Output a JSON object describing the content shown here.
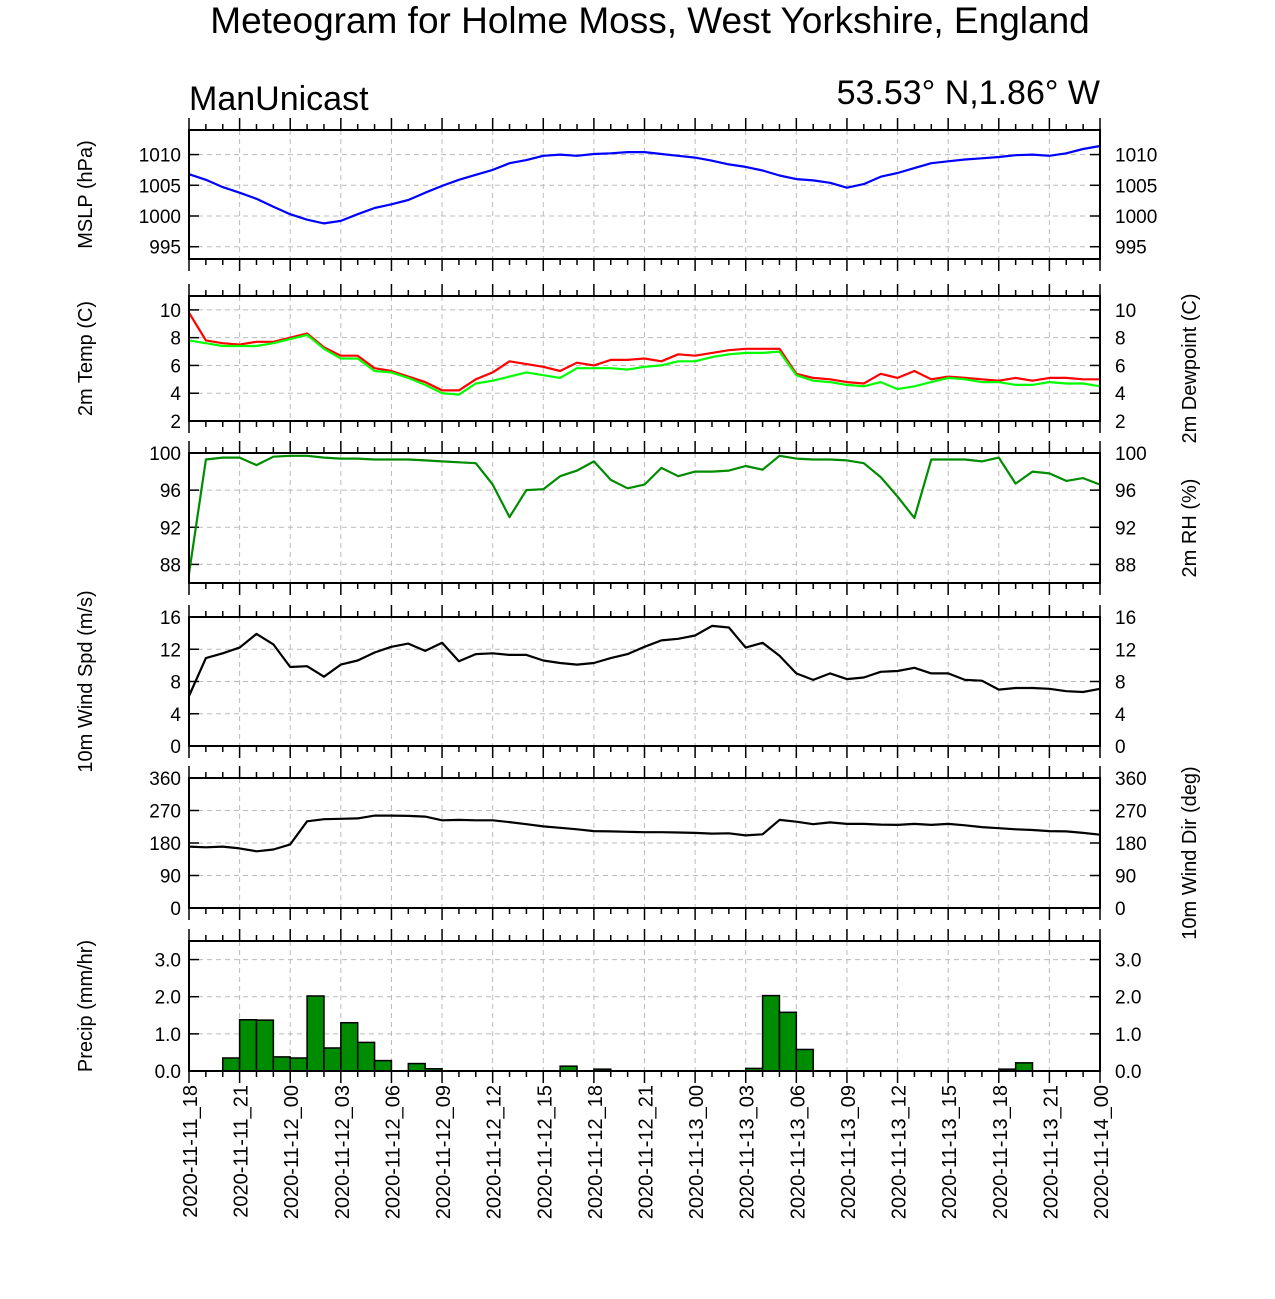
{
  "header": {
    "title": "Meteogram for Holme Moss, West Yorkshire, England",
    "model": "ManUnicast",
    "location": "53.53° N,1.86° W"
  },
  "time_labels": [
    "2020-11-11_18",
    "2020-11-11_21",
    "2020-11-12_00",
    "2020-11-12_03",
    "2020-11-12_06",
    "2020-11-12_09",
    "2020-11-12_12",
    "2020-11-12_15",
    "2020-11-12_18",
    "2020-11-12_21",
    "2020-11-13_00",
    "2020-11-13_03",
    "2020-11-13_06",
    "2020-11-13_09",
    "2020-11-13_12",
    "2020-11-13_15",
    "2020-11-13_18",
    "2020-11-13_21",
    "2020-11-14_00"
  ],
  "colors": {
    "mslp": "#0000ff",
    "temp": "#ff0000",
    "dewpoint": "#00ff00",
    "rh": "#008c00",
    "wind": "#000000",
    "precip_fill": "#008c00"
  },
  "chart_data": [
    {
      "type": "line",
      "id": "mslp",
      "ylabel_left": "MSLP (hPa)",
      "ylabel_right": "",
      "ylim": [
        993,
        1014
      ],
      "yticks": [
        995,
        1000,
        1005,
        1010
      ],
      "x_hours": [
        0,
        1,
        2,
        3,
        4,
        5,
        6,
        7,
        8,
        9,
        10,
        11,
        12,
        13,
        14,
        15,
        16,
        17,
        18,
        19,
        20,
        21,
        22,
        23,
        24,
        25,
        26,
        27,
        28,
        29,
        30,
        31,
        32,
        33,
        34,
        35,
        36,
        37,
        38,
        39,
        40,
        41,
        42,
        43,
        44,
        45,
        46,
        47,
        48,
        49,
        50,
        51,
        52,
        53,
        54
      ],
      "series": [
        {
          "values": [
            1006.8,
            1005.9,
            1004.7,
            1003.8,
            1002.8,
            1001.5,
            1000.3,
            999.4,
            998.8,
            999.2,
            1000.3,
            1001.3,
            1001.9,
            1002.6,
            1003.8,
            1004.9,
            1005.9,
            1006.7,
            1007.5,
            1008.6,
            1009.1,
            1009.8,
            1010.0,
            1009.8,
            1010.1,
            1010.2,
            1010.4,
            1010.4,
            1010.1,
            1009.8,
            1009.5,
            1009.0,
            1008.4,
            1008.0,
            1007.4,
            1006.6,
            1006.0,
            1005.8,
            1005.4,
            1004.6,
            1005.2,
            1006.4,
            1007.0,
            1007.8,
            1008.6,
            1008.9,
            1009.2,
            1009.4,
            1009.6,
            1009.9,
            1010.0,
            1009.8,
            1010.2,
            1010.9,
            1011.4
          ]
        }
      ],
      "x_extension_note": ""
    },
    {
      "type": "line",
      "id": "temp",
      "ylabel_left": "2m Temp (C)",
      "ylabel_right": "2m Dewpoint (C)",
      "ylim": [
        2,
        11
      ],
      "yticks": [
        2,
        4,
        6,
        8,
        10
      ],
      "series": [
        {
          "name": "",
          "color_key": "temp",
          "values": [
            9.8,
            7.8,
            7.6,
            7.5,
            7.7,
            7.7,
            8.0,
            8.3,
            7.3,
            6.7,
            6.7,
            5.8,
            5.6,
            5.2,
            4.8,
            4.2,
            4.2,
            5.0,
            5.5,
            6.3,
            6.1,
            5.9,
            5.6,
            6.2,
            6.0,
            6.4,
            6.4,
            6.5,
            6.3,
            6.8,
            6.7,
            6.9,
            7.1,
            7.2,
            7.2,
            7.2,
            5.4,
            5.1,
            5.0,
            4.8,
            4.7,
            5.4,
            5.1,
            5.6,
            5.0,
            5.2,
            5.1,
            5.0,
            4.9,
            5.1,
            4.9,
            5.1,
            5.1,
            5.0,
            5.0
          ]
        },
        {
          "name": "",
          "color_key": "dewpoint",
          "values": [
            7.8,
            7.6,
            7.4,
            7.4,
            7.4,
            7.6,
            7.9,
            8.2,
            7.2,
            6.5,
            6.5,
            5.6,
            5.5,
            5.1,
            4.6,
            4.0,
            3.9,
            4.7,
            4.9,
            5.2,
            5.5,
            5.3,
            5.1,
            5.8,
            5.8,
            5.8,
            5.7,
            5.9,
            6.0,
            6.3,
            6.3,
            6.6,
            6.8,
            6.9,
            6.9,
            7.0,
            5.3,
            4.9,
            4.8,
            4.6,
            4.5,
            4.8,
            4.3,
            4.5,
            4.8,
            5.1,
            5.0,
            4.8,
            4.8,
            4.6,
            4.6,
            4.8,
            4.7,
            4.7,
            4.5
          ]
        }
      ]
    },
    {
      "type": "line",
      "id": "rh",
      "ylabel_left": "",
      "ylabel_right": "2m RH (%)",
      "ylim": [
        86,
        100
      ],
      "yticks": [
        88,
        92,
        96,
        100
      ],
      "series": [
        {
          "name": "",
          "color_key": "rh",
          "values": [
            87.0,
            99.3,
            99.5,
            99.5,
            98.7,
            99.6,
            99.7,
            99.7,
            99.5,
            99.4,
            99.4,
            99.3,
            99.3,
            99.3,
            99.2,
            99.1,
            99.0,
            98.9,
            96.6,
            93.1,
            96.0,
            96.1,
            97.5,
            98.1,
            99.1,
            97.1,
            96.2,
            96.6,
            98.4,
            97.5,
            98.0,
            98.0,
            98.1,
            98.6,
            98.2,
            99.7,
            99.4,
            99.3,
            99.3,
            99.2,
            98.9,
            97.4,
            95.3,
            93.0,
            99.3,
            99.3,
            99.3,
            99.1,
            99.5,
            96.7,
            98.0,
            97.8,
            97.0,
            97.3,
            96.6
          ]
        }
      ]
    },
    {
      "type": "line",
      "id": "wind_speed",
      "ylabel_left": "10m Wind Spd (m/s)",
      "ylabel_right": "",
      "ylim": [
        0,
        16
      ],
      "yticks": [
        0,
        4,
        8,
        12,
        16
      ],
      "series": [
        {
          "name": "",
          "color_key": "wind",
          "values": [
            6.2,
            10.9,
            11.5,
            12.2,
            13.9,
            12.6,
            9.8,
            9.9,
            8.6,
            10.1,
            10.6,
            11.6,
            12.3,
            12.7,
            11.8,
            12.8,
            10.5,
            11.4,
            11.5,
            11.3,
            11.3,
            10.6,
            10.3,
            10.1,
            10.3,
            10.9,
            11.4,
            12.3,
            13.1,
            13.3,
            13.7,
            14.9,
            14.7,
            12.2,
            12.8,
            11.2,
            9.0,
            8.2,
            9.0,
            8.3,
            8.5,
            9.2,
            9.3,
            9.7,
            9.0,
            9.0,
            8.2,
            8.1,
            7.0,
            7.2,
            7.2,
            7.1,
            6.8,
            6.7,
            7.1
          ]
        }
      ]
    },
    {
      "type": "line",
      "id": "wind_dir",
      "ylabel_left": "",
      "ylabel_right": "10m Wind Dir (deg)",
      "ylim": [
        0,
        360
      ],
      "yticks": [
        0,
        90,
        180,
        270,
        360
      ],
      "series": [
        {
          "name": "",
          "color_key": "wind",
          "values": [
            170,
            168,
            170,
            165,
            157,
            162,
            176,
            240,
            246,
            247,
            248,
            256,
            256,
            255,
            253,
            243,
            244,
            243,
            243,
            238,
            232,
            226,
            222,
            218,
            213,
            212,
            211,
            210,
            210,
            209,
            208,
            206,
            207,
            201,
            204,
            244,
            239,
            232,
            237,
            233,
            233,
            231,
            230,
            233,
            230,
            233,
            229,
            224,
            221,
            218,
            216,
            213,
            212,
            208,
            203
          ]
        }
      ]
    },
    {
      "type": "bar",
      "id": "precip",
      "ylabel_left": "Precip (mm/hr)",
      "ylabel_right": "",
      "ylim": [
        0,
        3.5
      ],
      "yticks": [
        "0.0",
        "1.0",
        "2.0",
        "3.0"
      ],
      "values": [
        0,
        0,
        0.35,
        1.38,
        1.37,
        0.38,
        0.35,
        2.02,
        0.62,
        1.3,
        0.77,
        0.28,
        0,
        0.2,
        0.06,
        0,
        0,
        0,
        0,
        0,
        0,
        0,
        0.13,
        0,
        0.05,
        0,
        0,
        0,
        0,
        0,
        0,
        0,
        0,
        0.07,
        2.03,
        1.58,
        0.58,
        0,
        0,
        0,
        0,
        0,
        0,
        0,
        0,
        0,
        0,
        0,
        0.05,
        0.22,
        0,
        0,
        0,
        0
      ]
    }
  ]
}
